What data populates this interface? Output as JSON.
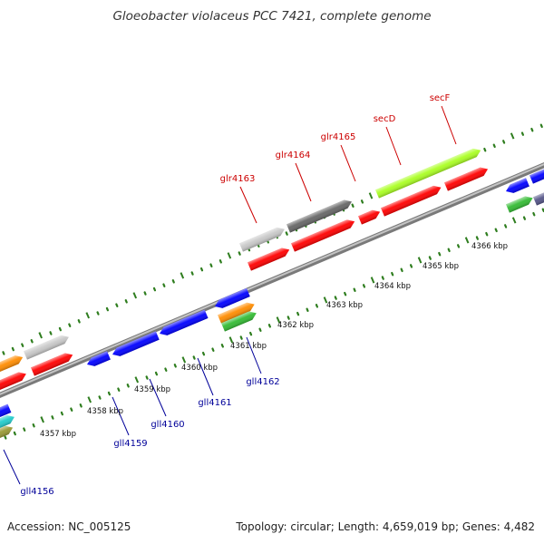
{
  "title": "Gloeobacter violaceus PCC 7421, complete genome",
  "footer": {
    "accession": "Accession: NC_005125",
    "summary": "Topology: circular; Length: 4,659,019 bp; Genes: 4,482"
  },
  "position_labels": [
    "4357 kbp",
    "4358 kbp",
    "4359 kbp",
    "4360 kbp",
    "4361 kbp",
    "4362 kbp",
    "4363 kbp",
    "4364 kbp",
    "4365 kbp",
    "4366 kbp"
  ],
  "plus_strand_labels": [
    "glr4163",
    "glr4164",
    "glr4165",
    "secD",
    "secF"
  ],
  "minus_strand_labels": [
    "gll4156",
    "gll4159",
    "gll4160",
    "gll4161",
    "gll4162"
  ],
  "colors": {
    "plus_label": "#cc0000",
    "minus_label": "#000099",
    "backbone": "#888888",
    "tick": "#2e7d1e",
    "red": "#ff0000",
    "blue": "#0000ff",
    "gray": "#c8c8c8",
    "dark_gray": "#666666",
    "orange": "#ff8c00",
    "lime": "#aaff22",
    "green": "#33bb33",
    "cyan": "#22cccc",
    "olive": "#999933",
    "slate": "#555588"
  }
}
